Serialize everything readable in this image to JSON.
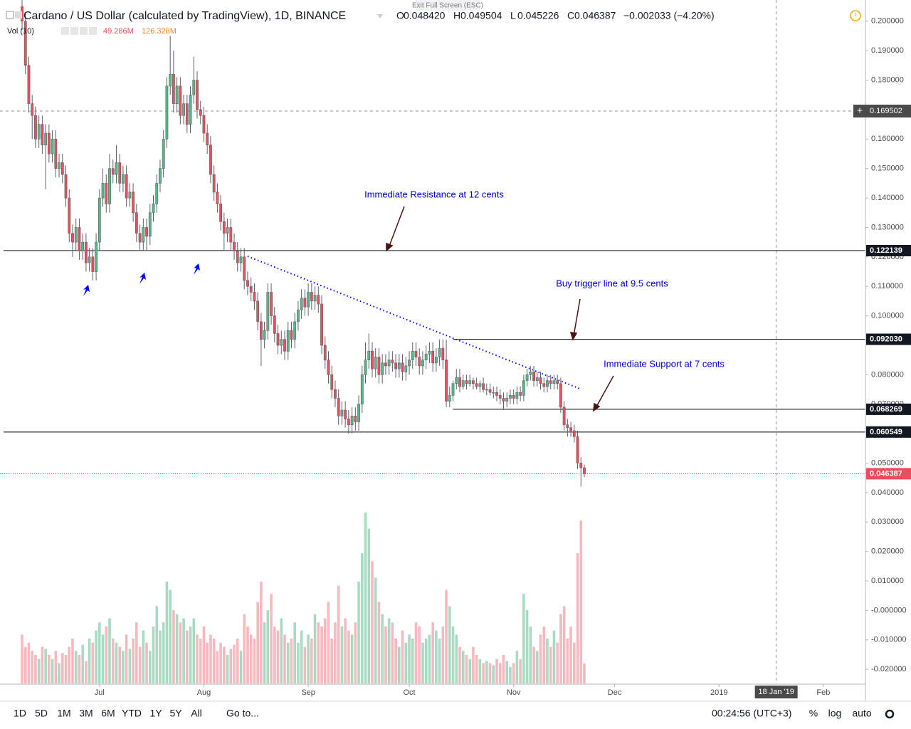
{
  "header": {
    "exit_fullscreen": "Exit Full Screen (ESC)",
    "ohlc": [
      {
        "key": "O",
        "value": "0.048420"
      },
      {
        "key": "H",
        "value": "0.049504"
      },
      {
        "key": "L",
        "value": "0.045226"
      },
      {
        "key": "C",
        "value": "0.046387"
      }
    ],
    "change": "−0.002033 (−4.20%)",
    "volume_title": "Vol (10)",
    "volume_value": "49.286M",
    "volume_ma": "126.328M"
  },
  "toolbar": {
    "ranges": [
      "1D",
      "5D",
      "1M",
      "3M",
      "6M",
      "YTD",
      "1Y",
      "5Y",
      "All"
    ],
    "goto": "Go to...",
    "clock": "00:24:56 (UTC+3)",
    "options": [
      "%",
      "log",
      "auto"
    ]
  },
  "chart_data": {
    "type": "candlestick",
    "title": "Cardano / US Dollar (calculated by TradingView), 1D, BINANCE",
    "up_color": "#53b987",
    "down_color": "#eb4d5c",
    "x": [
      -23,
      -22,
      -21,
      -20,
      -19,
      -18,
      -17,
      -16,
      -15,
      -14,
      -13,
      -12,
      -11,
      -10,
      -9,
      -8,
      -7,
      -6,
      -5,
      -4,
      -3,
      -2,
      -1,
      0,
      1,
      2,
      3,
      4,
      5,
      6,
      7,
      8,
      9,
      10,
      11,
      12,
      13,
      14,
      15,
      16,
      17,
      18,
      19,
      20,
      21,
      22,
      23,
      24,
      25,
      26,
      27,
      28,
      29,
      30,
      31,
      32,
      33,
      34,
      35,
      36,
      37,
      38,
      39,
      40,
      41,
      42,
      43,
      44,
      45,
      46,
      47,
      48,
      49,
      50,
      51,
      52,
      53,
      54,
      55,
      56,
      57,
      58,
      59,
      60,
      61,
      62,
      63,
      64,
      65,
      66,
      67,
      68,
      69,
      70,
      71,
      72,
      73,
      74,
      75,
      76,
      77,
      78,
      79,
      80,
      81,
      82,
      83,
      84,
      85,
      86,
      87,
      88,
      89,
      90,
      91,
      92,
      93,
      94,
      95,
      96,
      97,
      98,
      99,
      100,
      101,
      102,
      103,
      104,
      105,
      106,
      107,
      108,
      109,
      110,
      111,
      112,
      113,
      114,
      115,
      116,
      117,
      118,
      119,
      120,
      121,
      122,
      123,
      124,
      125,
      126,
      127,
      128,
      129,
      130,
      131,
      132,
      133,
      134,
      135,
      136,
      137,
      138,
      139,
      140,
      141,
      142,
      143,
      144
    ],
    "open": [
      0.205,
      0.2,
      0.185,
      0.172,
      0.168,
      0.16,
      0.165,
      0.158,
      0.162,
      0.155,
      0.16,
      0.15,
      0.152,
      0.148,
      0.14,
      0.128,
      0.125,
      0.13,
      0.122,
      0.125,
      0.118,
      0.12,
      0.115,
      0.125,
      0.14,
      0.145,
      0.138,
      0.15,
      0.148,
      0.152,
      0.145,
      0.148,
      0.14,
      0.142,
      0.135,
      0.128,
      0.125,
      0.13,
      0.127,
      0.135,
      0.138,
      0.145,
      0.15,
      0.16,
      0.178,
      0.182,
      0.172,
      0.178,
      0.168,
      0.172,
      0.165,
      0.175,
      0.18,
      0.17,
      0.168,
      0.162,
      0.158,
      0.148,
      0.142,
      0.138,
      0.132,
      0.128,
      0.13,
      0.125,
      0.122,
      0.118,
      0.12,
      0.112,
      0.11,
      0.108,
      0.105,
      0.098,
      0.092,
      0.095,
      0.108,
      0.1,
      0.094,
      0.09,
      0.092,
      0.088,
      0.095,
      0.092,
      0.098,
      0.102,
      0.106,
      0.103,
      0.108,
      0.105,
      0.107,
      0.104,
      0.09,
      0.085,
      0.08,
      0.075,
      0.072,
      0.066,
      0.068,
      0.065,
      0.063,
      0.066,
      0.064,
      0.07,
      0.08,
      0.085,
      0.088,
      0.082,
      0.086,
      0.08,
      0.084,
      0.083,
      0.085,
      0.084,
      0.082,
      0.084,
      0.081,
      0.083,
      0.085,
      0.088,
      0.086,
      0.083,
      0.085,
      0.087,
      0.088,
      0.084,
      0.086,
      0.089,
      0.085,
      0.071,
      0.073,
      0.077,
      0.079,
      0.076,
      0.078,
      0.077,
      0.078,
      0.077,
      0.076,
      0.077,
      0.075,
      0.075,
      0.074,
      0.074,
      0.073,
      0.072,
      0.071,
      0.072,
      0.073,
      0.072,
      0.074,
      0.073,
      0.078,
      0.08,
      0.081,
      0.078,
      0.079,
      0.077,
      0.076,
      0.078,
      0.077,
      0.078,
      0.077,
      0.069,
      0.063,
      0.062,
      0.061,
      0.059,
      0.05,
      0.04842
    ],
    "high": [
      0.208,
      0.203,
      0.188,
      0.175,
      0.171,
      0.168,
      0.168,
      0.165,
      0.165,
      0.163,
      0.163,
      0.155,
      0.155,
      0.151,
      0.143,
      0.131,
      0.133,
      0.133,
      0.128,
      0.128,
      0.123,
      0.123,
      0.128,
      0.143,
      0.15,
      0.148,
      0.155,
      0.153,
      0.158,
      0.155,
      0.151,
      0.151,
      0.145,
      0.145,
      0.138,
      0.131,
      0.133,
      0.133,
      0.138,
      0.141,
      0.148,
      0.153,
      0.163,
      0.181,
      0.195,
      0.19,
      0.181,
      0.181,
      0.175,
      0.175,
      0.178,
      0.188,
      0.183,
      0.173,
      0.171,
      0.165,
      0.161,
      0.151,
      0.145,
      0.141,
      0.135,
      0.133,
      0.133,
      0.128,
      0.125,
      0.123,
      0.123,
      0.115,
      0.113,
      0.111,
      0.108,
      0.101,
      0.098,
      0.111,
      0.111,
      0.103,
      0.097,
      0.095,
      0.095,
      0.098,
      0.098,
      0.101,
      0.105,
      0.109,
      0.109,
      0.111,
      0.111,
      0.11,
      0.11,
      0.107,
      0.093,
      0.088,
      0.083,
      0.078,
      0.075,
      0.071,
      0.071,
      0.068,
      0.069,
      0.069,
      0.073,
      0.083,
      0.091,
      0.094,
      0.091,
      0.089,
      0.089,
      0.087,
      0.087,
      0.088,
      0.088,
      0.087,
      0.087,
      0.087,
      0.086,
      0.088,
      0.091,
      0.091,
      0.089,
      0.088,
      0.09,
      0.091,
      0.091,
      0.089,
      0.092,
      0.092,
      0.092,
      0.076,
      0.078,
      0.082,
      0.082,
      0.08,
      0.08,
      0.08,
      0.079,
      0.079,
      0.078,
      0.079,
      0.077,
      0.077,
      0.076,
      0.076,
      0.075,
      0.074,
      0.074,
      0.075,
      0.075,
      0.076,
      0.076,
      0.08,
      0.082,
      0.083,
      0.083,
      0.081,
      0.081,
      0.079,
      0.08,
      0.08,
      0.08,
      0.08,
      0.079,
      0.071,
      0.065,
      0.064,
      0.063,
      0.061,
      0.052,
      0.049504
    ],
    "low": [
      0.197,
      0.182,
      0.169,
      0.16,
      0.157,
      0.157,
      0.155,
      0.143,
      0.152,
      0.152,
      0.147,
      0.147,
      0.145,
      0.137,
      0.125,
      0.12,
      0.122,
      0.119,
      0.119,
      0.115,
      0.115,
      0.112,
      0.112,
      0.122,
      0.137,
      0.135,
      0.135,
      0.145,
      0.145,
      0.142,
      0.142,
      0.137,
      0.137,
      0.132,
      0.125,
      0.122,
      0.122,
      0.122,
      0.124,
      0.132,
      0.135,
      0.142,
      0.147,
      0.157,
      0.175,
      0.169,
      0.169,
      0.165,
      0.165,
      0.162,
      0.162,
      0.172,
      0.167,
      0.165,
      0.159,
      0.155,
      0.145,
      0.139,
      0.135,
      0.129,
      0.122,
      0.125,
      0.122,
      0.119,
      0.115,
      0.115,
      0.109,
      0.107,
      0.105,
      0.102,
      0.095,
      0.083,
      0.089,
      0.092,
      0.097,
      0.091,
      0.087,
      0.087,
      0.085,
      0.085,
      0.089,
      0.089,
      0.095,
      0.099,
      0.1,
      0.1,
      0.102,
      0.102,
      0.101,
      0.087,
      0.082,
      0.077,
      0.072,
      0.069,
      0.063,
      0.063,
      0.062,
      0.06,
      0.06,
      0.061,
      0.061,
      0.067,
      0.077,
      0.082,
      0.079,
      0.079,
      0.077,
      0.077,
      0.08,
      0.08,
      0.081,
      0.079,
      0.079,
      0.078,
      0.078,
      0.08,
      0.082,
      0.083,
      0.08,
      0.08,
      0.082,
      0.084,
      0.081,
      0.081,
      0.083,
      0.082,
      0.069,
      0.069,
      0.071,
      0.075,
      0.074,
      0.075,
      0.075,
      0.076,
      0.075,
      0.075,
      0.074,
      0.074,
      0.073,
      0.073,
      0.072,
      0.071,
      0.07,
      0.068,
      0.069,
      0.07,
      0.07,
      0.07,
      0.071,
      0.071,
      0.076,
      0.078,
      0.076,
      0.076,
      0.075,
      0.074,
      0.074,
      0.075,
      0.075,
      0.075,
      0.067,
      0.061,
      0.059,
      0.059,
      0.057,
      0.048,
      0.042,
      0.045226
    ],
    "close": [
      0.2,
      0.185,
      0.172,
      0.168,
      0.16,
      0.165,
      0.158,
      0.162,
      0.155,
      0.16,
      0.15,
      0.152,
      0.148,
      0.14,
      0.128,
      0.125,
      0.13,
      0.122,
      0.125,
      0.118,
      0.12,
      0.115,
      0.125,
      0.14,
      0.145,
      0.138,
      0.15,
      0.148,
      0.152,
      0.145,
      0.148,
      0.14,
      0.142,
      0.135,
      0.128,
      0.125,
      0.13,
      0.127,
      0.135,
      0.138,
      0.145,
      0.15,
      0.16,
      0.178,
      0.182,
      0.172,
      0.178,
      0.168,
      0.172,
      0.165,
      0.175,
      0.18,
      0.17,
      0.168,
      0.162,
      0.158,
      0.148,
      0.142,
      0.138,
      0.132,
      0.128,
      0.13,
      0.125,
      0.122,
      0.118,
      0.12,
      0.112,
      0.11,
      0.108,
      0.105,
      0.098,
      0.092,
      0.095,
      0.108,
      0.1,
      0.094,
      0.09,
      0.092,
      0.088,
      0.095,
      0.092,
      0.098,
      0.102,
      0.106,
      0.103,
      0.108,
      0.105,
      0.107,
      0.104,
      0.09,
      0.085,
      0.08,
      0.075,
      0.072,
      0.066,
      0.068,
      0.065,
      0.063,
      0.066,
      0.064,
      0.07,
      0.08,
      0.085,
      0.088,
      0.082,
      0.086,
      0.08,
      0.084,
      0.083,
      0.085,
      0.084,
      0.082,
      0.084,
      0.081,
      0.083,
      0.085,
      0.088,
      0.086,
      0.083,
      0.085,
      0.087,
      0.088,
      0.084,
      0.086,
      0.089,
      0.085,
      0.071,
      0.073,
      0.077,
      0.079,
      0.076,
      0.078,
      0.077,
      0.078,
      0.077,
      0.076,
      0.077,
      0.075,
      0.075,
      0.074,
      0.074,
      0.073,
      0.072,
      0.071,
      0.072,
      0.073,
      0.072,
      0.074,
      0.073,
      0.078,
      0.08,
      0.081,
      0.078,
      0.079,
      0.077,
      0.076,
      0.078,
      0.077,
      0.078,
      0.077,
      0.069,
      0.063,
      0.062,
      0.061,
      0.059,
      0.05,
      0.0484,
      0.046387
    ],
    "volume": {
      "ylim": [
        0,
        1670
      ],
      "up_color": "#a8dbc3",
      "down_color": "#f7b9c0",
      "values": [
        120,
        90,
        100,
        80,
        70,
        60,
        90,
        85,
        70,
        60,
        80,
        50,
        75,
        70,
        90,
        110,
        80,
        70,
        95,
        55,
        110,
        100,
        130,
        150,
        120,
        140,
        160,
        110,
        100,
        90,
        80,
        120,
        85,
        110,
        150,
        90,
        130,
        100,
        80,
        140,
        190,
        130,
        150,
        250,
        230,
        180,
        170,
        150,
        160,
        130,
        140,
        160,
        120,
        110,
        140,
        100,
        120,
        110,
        80,
        100,
        90,
        70,
        85,
        95,
        110,
        80,
        170,
        140,
        120,
        110,
        200,
        250,
        150,
        180,
        220,
        140,
        130,
        160,
        120,
        100,
        110,
        150,
        100,
        130,
        90,
        120,
        110,
        170,
        150,
        140,
        160,
        200,
        110,
        150,
        240,
        140,
        160,
        130,
        120,
        150,
        250,
        320,
        420,
        380,
        300,
        260,
        200,
        170,
        140,
        160,
        150,
        110,
        90,
        130,
        100,
        120,
        110,
        150,
        140,
        100,
        110,
        120,
        150,
        130,
        110,
        140,
        230,
        190,
        140,
        120,
        90,
        80,
        70,
        60,
        90,
        70,
        60,
        50,
        55,
        50,
        45,
        60,
        50,
        70,
        55,
        40,
        50,
        80,
        60,
        220,
        180,
        140,
        90,
        80,
        120,
        140,
        110,
        90,
        130,
        100,
        170,
        190,
        110,
        140,
        100,
        320,
        400,
        49.286
      ]
    },
    "xlim": [
      -28.5,
      227.5
    ],
    "xticks": [
      {
        "value": 0,
        "label": "Jul"
      },
      {
        "value": 31,
        "label": "Aug"
      },
      {
        "value": 62,
        "label": "Sep"
      },
      {
        "value": 92,
        "label": "Oct"
      },
      {
        "value": 123,
        "label": "Nov"
      },
      {
        "value": 153,
        "label": "Dec"
      },
      {
        "value": 184,
        "label": "2019"
      },
      {
        "value": 215,
        "label": "Feb"
      }
    ],
    "ylim": [
      -0.0248,
      0.206
    ],
    "yticks": [
      {
        "value": 0.2,
        "label": "0.200000"
      },
      {
        "value": 0.19,
        "label": "0.190000"
      },
      {
        "value": 0.18,
        "label": "0.180000"
      },
      {
        "value": 0.16,
        "label": "0.160000"
      },
      {
        "value": 0.15,
        "label": "0.150000"
      },
      {
        "value": 0.14,
        "label": "0.140000"
      },
      {
        "value": 0.13,
        "label": "0.130000"
      },
      {
        "value": 0.12,
        "label": "0.120000"
      },
      {
        "value": 0.11,
        "label": "0.110000"
      },
      {
        "value": 0.1,
        "label": "0.100000"
      },
      {
        "value": 0.08,
        "label": "0.080000"
      },
      {
        "value": 0.07,
        "label": "0.070000"
      },
      {
        "value": 0.05,
        "label": "0.050000"
      },
      {
        "value": 0.04,
        "label": "0.040000"
      },
      {
        "value": 0.03,
        "label": "0.030000"
      },
      {
        "value": 0.02,
        "label": "0.020000"
      },
      {
        "value": 0.01,
        "label": "0.010000"
      },
      {
        "value": 0,
        "label": "-0.000000"
      },
      {
        "value": -0.01,
        "label": "-0.010000"
      },
      {
        "value": -0.02,
        "label": "-0.020000"
      }
    ],
    "levels": [
      {
        "value": 0.122139,
        "label": "0.122139"
      },
      {
        "value": 0.09203,
        "label": "0.092030",
        "x_start": 105
      },
      {
        "value": 0.068269,
        "label": "0.068269",
        "x_start": 105
      },
      {
        "value": 0.060549,
        "label": "0.060549"
      }
    ],
    "last_price": {
      "value": 0.046387,
      "label": "0.046387",
      "color": "#eb4d5c"
    },
    "crosshair": {
      "x": 201,
      "x_label": "18 Jan '19",
      "y": 0.169502,
      "y_label": "0.169502"
    },
    "trendline": {
      "x": [
        44,
        143
      ],
      "y": [
        0.1202,
        0.0751
      ],
      "color": "#0000ff"
    },
    "annotations": [
      "Immediate Resistance at 12 cents",
      "Buy trigger line at 9.5 cents",
      "Immediate Support at 7 cents"
    ]
  }
}
